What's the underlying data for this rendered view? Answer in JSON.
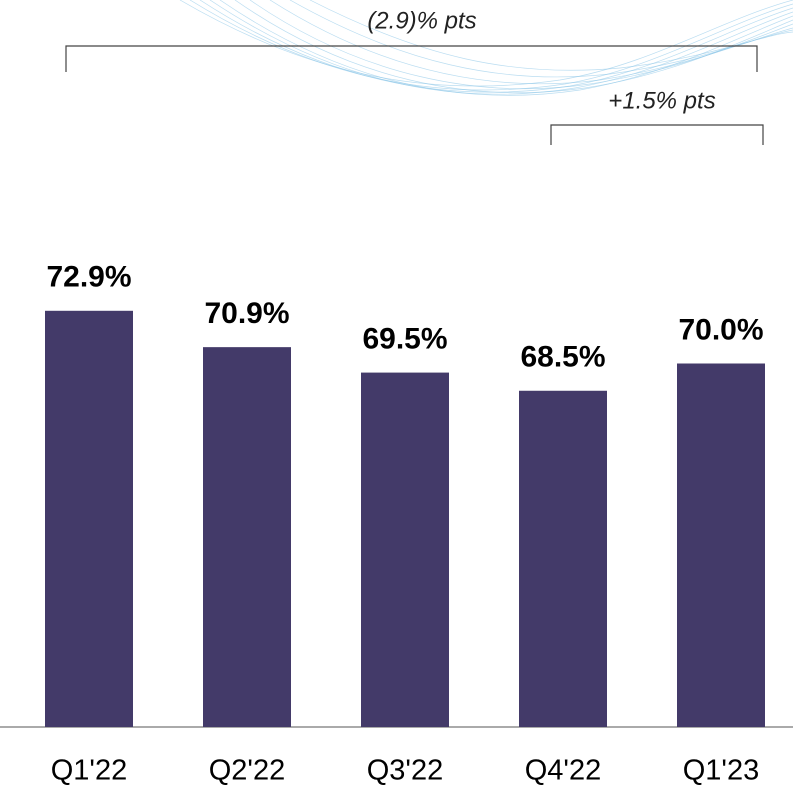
{
  "chart_data": {
    "type": "bar",
    "categories": [
      "Q1'22",
      "Q2'22",
      "Q3'22",
      "Q4'22",
      "Q1'23"
    ],
    "values": [
      72.9,
      70.9,
      69.5,
      68.5,
      70.0
    ],
    "value_labels": [
      "72.9%",
      "70.9%",
      "69.5%",
      "68.5%",
      "70.0%"
    ],
    "color": "#433a69",
    "ylim": [
      50,
      90
    ],
    "annotations": [
      "(2.9)% pts",
      "+1.5% pts"
    ]
  }
}
